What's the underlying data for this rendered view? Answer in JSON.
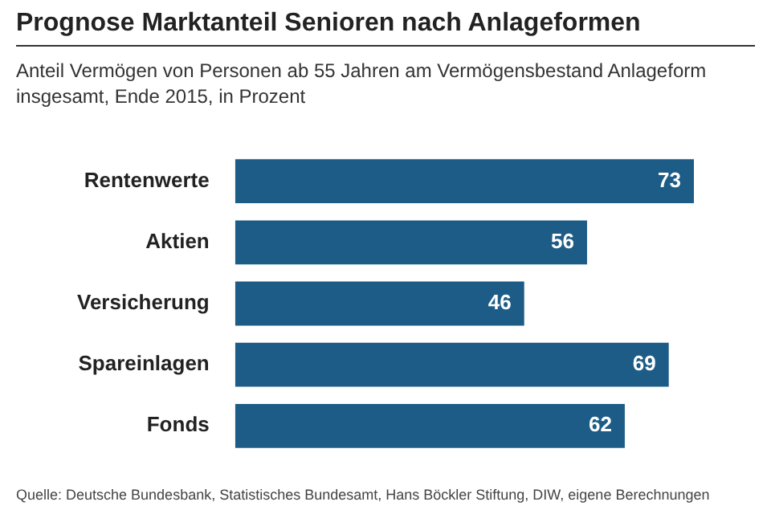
{
  "chart_data": {
    "type": "bar",
    "orientation": "horizontal",
    "title": "Prognose Marktanteil Senioren nach Anlageformen",
    "subtitle": "Anteil Vermögen von Personen ab 55 Jahren am Vermögensbestand Anlageform insgesamt, Ende 2015, in Prozent",
    "categories": [
      "Rentenwerte",
      "Aktien",
      "Versicherung",
      "Spareinlagen",
      "Fonds"
    ],
    "values": [
      73,
      56,
      46,
      69,
      62
    ],
    "color": "#1d5c86",
    "data_labels": true,
    "legend": false,
    "tick_labels": "y",
    "annotations": [
      "Quelle: Deutsche Bundesbank, Statistisches Bundesamt, Hans Böckler Stiftung, DIW, eigene Berechnungen"
    ]
  }
}
